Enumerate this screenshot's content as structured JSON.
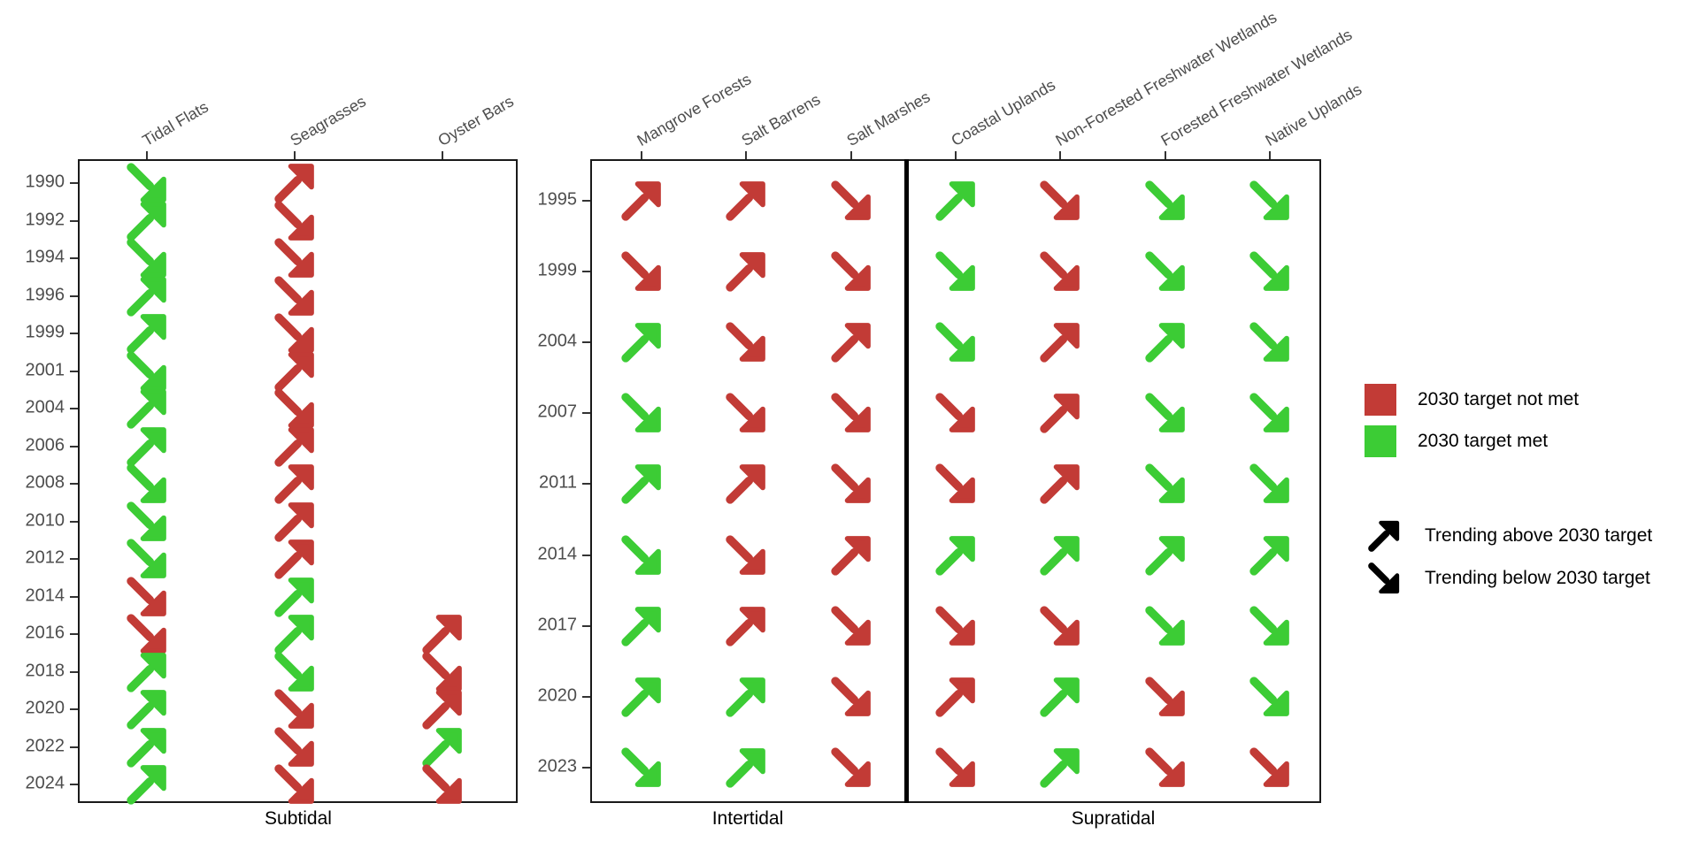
{
  "colors": {
    "met": "#3CCC35",
    "not_met": "#C23B36",
    "trend_glyph": "#000000",
    "axis_text": "#4d4d4d",
    "border": "#1a1a1a"
  },
  "chart_data": {
    "type": "trend-matrix",
    "title": "",
    "xlabel": "",
    "ylabel": "",
    "grid": false,
    "legend_position": "right",
    "legend": {
      "status_items": [
        {
          "key": "not_met",
          "label": "2030 target not met",
          "color": "#C23B36"
        },
        {
          "key": "met",
          "label": "2030 target met",
          "color": "#3CCC35"
        }
      ],
      "trend_items": [
        {
          "dir": "NE",
          "label": "Trending above 2030 target"
        },
        {
          "dir": "SE",
          "label": "Trending below 2030 target"
        }
      ]
    },
    "cell_encoding": "direction NE = trending above target, SE = trending below target; met = 2030 target met (green), not = not met (red)",
    "panels": [
      {
        "id": "subtidal",
        "years": [
          1990,
          1992,
          1994,
          1996,
          1999,
          2001,
          2004,
          2006,
          2008,
          2010,
          2012,
          2014,
          2016,
          2018,
          2020,
          2022,
          2024
        ],
        "sections": [
          {
            "label": "Subtidal",
            "columns": [
              {
                "name": "Tidal Flats",
                "cells": [
                  "SE-met",
                  "NE-met",
                  "SE-met",
                  "NE-met",
                  "NE-met",
                  "SE-met",
                  "NE-met",
                  "NE-met",
                  "SE-met",
                  "SE-met",
                  "SE-met",
                  "SE-not",
                  "SE-not",
                  "NE-met",
                  "NE-met",
                  "NE-met",
                  "NE-met"
                ]
              },
              {
                "name": "Seagrasses",
                "cells": [
                  "NE-not",
                  "SE-not",
                  "SE-not",
                  "SE-not",
                  "SE-not",
                  "NE-not",
                  "SE-not",
                  "NE-not",
                  "NE-not",
                  "NE-not",
                  "NE-not",
                  "NE-met",
                  "NE-met",
                  "SE-met",
                  "SE-not",
                  "SE-not",
                  "SE-not"
                ]
              },
              {
                "name": "Oyster Bars",
                "cells": [
                  null,
                  null,
                  null,
                  null,
                  null,
                  null,
                  null,
                  null,
                  null,
                  null,
                  null,
                  null,
                  "NE-not",
                  "SE-not",
                  "NE-not",
                  "NE-met",
                  "SE-not"
                ]
              }
            ]
          }
        ]
      },
      {
        "id": "tidal",
        "years": [
          1995,
          1999,
          2004,
          2007,
          2011,
          2014,
          2017,
          2020,
          2023
        ],
        "sections": [
          {
            "label": "Intertidal",
            "columns": [
              {
                "name": "Mangrove Forests",
                "cells": [
                  "NE-not",
                  "SE-not",
                  "NE-met",
                  "SE-met",
                  "NE-met",
                  "SE-met",
                  "NE-met",
                  "NE-met",
                  "SE-met"
                ]
              },
              {
                "name": "Salt Barrens",
                "cells": [
                  "NE-not",
                  "NE-not",
                  "SE-not",
                  "SE-not",
                  "NE-not",
                  "SE-not",
                  "NE-not",
                  "NE-met",
                  "NE-met"
                ]
              },
              {
                "name": "Salt Marshes",
                "cells": [
                  "SE-not",
                  "SE-not",
                  "NE-not",
                  "SE-not",
                  "SE-not",
                  "NE-not",
                  "SE-not",
                  "SE-not",
                  "SE-not"
                ]
              }
            ]
          },
          {
            "label": "Supratidal",
            "columns": [
              {
                "name": "Coastal Uplands",
                "cells": [
                  "NE-met",
                  "SE-met",
                  "SE-met",
                  "SE-not",
                  "SE-not",
                  "NE-met",
                  "SE-not",
                  "NE-not",
                  "SE-not"
                ]
              },
              {
                "name": "Non-Forested Freshwater Wetlands",
                "cells": [
                  "SE-not",
                  "SE-not",
                  "NE-not",
                  "NE-not",
                  "NE-not",
                  "NE-met",
                  "SE-not",
                  "NE-met",
                  "NE-met"
                ]
              },
              {
                "name": "Forested Freshwater Wetlands",
                "cells": [
                  "SE-met",
                  "SE-met",
                  "NE-met",
                  "SE-met",
                  "SE-met",
                  "NE-met",
                  "SE-met",
                  "SE-not",
                  "SE-not"
                ]
              },
              {
                "name": "Native Uplands",
                "cells": [
                  "SE-met",
                  "SE-met",
                  "SE-met",
                  "SE-met",
                  "SE-met",
                  "NE-met",
                  "SE-met",
                  "SE-met",
                  "SE-not"
                ]
              }
            ]
          }
        ]
      }
    ]
  }
}
